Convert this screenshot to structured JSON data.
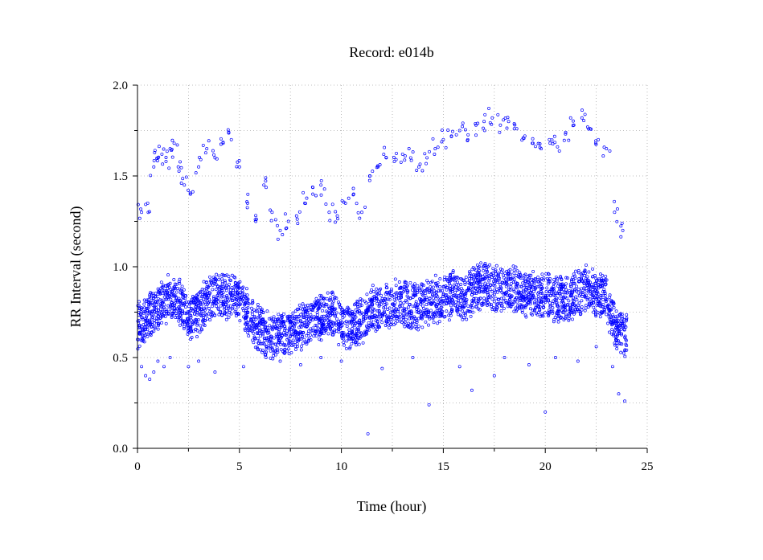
{
  "chart_data": {
    "type": "scatter",
    "title": "Record:  e014b",
    "xlabel": "Time (hour)",
    "ylabel": "RR Interval (second)",
    "xlim": [
      0,
      25
    ],
    "ylim": [
      0.0,
      2.0
    ],
    "x_ticks": [
      0,
      5,
      10,
      15,
      20,
      25
    ],
    "x_tick_labels": [
      "0",
      "5",
      "10",
      "15",
      "20",
      "25"
    ],
    "y_ticks": [
      0.0,
      0.5,
      1.0,
      1.5,
      2.0
    ],
    "y_tick_labels": [
      "0.0",
      "0.5",
      "1.0",
      "1.5",
      "2.0"
    ],
    "grid": true,
    "marker_color": "#0000ff",
    "series": [
      {
        "trend_x": [
          0,
          0.5,
          1,
          1.5,
          2,
          2.5,
          3,
          3.5,
          4,
          4.5,
          5,
          5.5,
          6,
          6.5,
          7,
          7.5,
          8,
          8.5,
          9,
          9.5,
          10,
          10.5,
          11,
          11.5,
          12,
          12.5,
          13,
          13.5,
          14,
          14.5,
          15,
          15.5,
          16,
          16.5,
          17,
          17.5,
          18,
          18.5,
          19,
          19.5,
          20,
          20.5,
          21,
          21.5,
          22,
          22.5,
          23,
          23.3,
          23.6,
          24
        ],
        "trend_y": [
          0.68,
          0.72,
          0.78,
          0.82,
          0.82,
          0.72,
          0.75,
          0.82,
          0.83,
          0.85,
          0.82,
          0.72,
          0.65,
          0.62,
          0.6,
          0.65,
          0.67,
          0.7,
          0.72,
          0.75,
          0.68,
          0.66,
          0.7,
          0.76,
          0.78,
          0.8,
          0.8,
          0.78,
          0.8,
          0.82,
          0.82,
          0.85,
          0.82,
          0.88,
          0.9,
          0.88,
          0.88,
          0.88,
          0.85,
          0.84,
          0.84,
          0.83,
          0.82,
          0.85,
          0.88,
          0.86,
          0.82,
          0.7,
          0.64,
          0.62
        ]
      },
      {
        "outliers_high_x": [
          0.2,
          0.5,
          0.8,
          1.0,
          1.2,
          1.4,
          1.6,
          1.8,
          2.0,
          2.3,
          2.6,
          3.0,
          3.4,
          3.8,
          4.2,
          4.6,
          5.0,
          5.4,
          5.8,
          6.2,
          6.6,
          7.0,
          7.4,
          7.8,
          8.2,
          8.6,
          9.0,
          9.4,
          9.8,
          10.2,
          10.6,
          11.0,
          11.4,
          11.8,
          12.2,
          12.6,
          13.0,
          13.4,
          13.8,
          14.2,
          14.6,
          15.0,
          15.4,
          15.8,
          16.2,
          16.6,
          17.0,
          17.4,
          17.8,
          18.2,
          18.6,
          19.0,
          19.4,
          19.8,
          20.2,
          20.6,
          21.0,
          21.4,
          21.8,
          22.2,
          22.6,
          23.0,
          23.4,
          23.8
        ],
        "outliers_high_y": [
          1.3,
          1.35,
          1.55,
          1.6,
          1.62,
          1.58,
          1.65,
          1.68,
          1.55,
          1.45,
          1.4,
          1.55,
          1.65,
          1.6,
          1.68,
          1.7,
          1.55,
          1.35,
          1.25,
          1.45,
          1.3,
          1.2,
          1.25,
          1.28,
          1.35,
          1.4,
          1.45,
          1.3,
          1.28,
          1.35,
          1.4,
          1.3,
          1.5,
          1.55,
          1.6,
          1.58,
          1.62,
          1.6,
          1.55,
          1.6,
          1.65,
          1.7,
          1.72,
          1.75,
          1.7,
          1.78,
          1.8,
          1.82,
          1.78,
          1.8,
          1.76,
          1.72,
          1.68,
          1.65,
          1.7,
          1.66,
          1.74,
          1.78,
          1.82,
          1.76,
          1.7,
          1.65,
          1.3,
          1.2
        ]
      },
      {
        "outliers_low_x": [
          0.2,
          0.4,
          0.6,
          0.8,
          1.0,
          1.3,
          1.6,
          2.5,
          3.0,
          3.8,
          5.2,
          6.3,
          7.0,
          8.0,
          9.0,
          10.0,
          11.3,
          12.0,
          13.5,
          14.3,
          15.8,
          16.4,
          17.5,
          18.0,
          19.2,
          20.0,
          20.5,
          21.6,
          22.5,
          23.3,
          23.6,
          23.9
        ],
        "outliers_low_y": [
          0.45,
          0.4,
          0.38,
          0.42,
          0.48,
          0.45,
          0.5,
          0.45,
          0.48,
          0.42,
          0.45,
          0.5,
          0.48,
          0.46,
          0.5,
          0.48,
          0.08,
          0.44,
          0.5,
          0.24,
          0.45,
          0.32,
          0.4,
          0.5,
          0.46,
          0.2,
          0.5,
          0.48,
          0.56,
          0.45,
          0.3,
          0.26
        ]
      }
    ]
  }
}
